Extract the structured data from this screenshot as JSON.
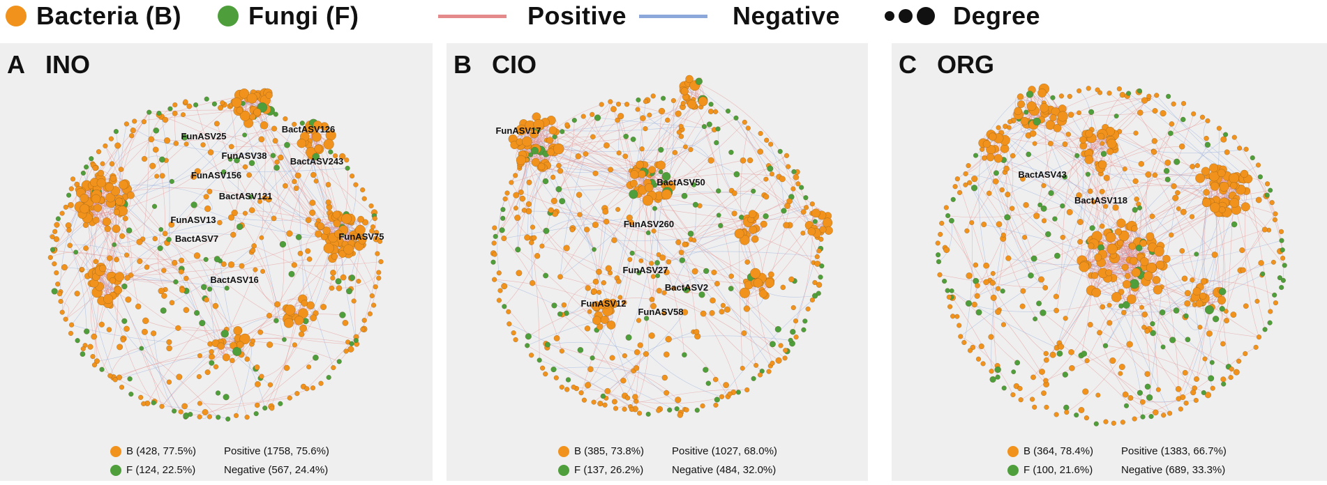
{
  "colors": {
    "bacteria": "#f0921c",
    "fungi": "#4f9e3c",
    "positive": "#e48a8a",
    "negative": "#8ca8da",
    "panel_bg": "#efefef"
  },
  "legend": {
    "bacteria": "Bacteria (B)",
    "fungi": "Fungi (F)",
    "positive": "Positive",
    "negative": "Negative",
    "degree": "Degree"
  },
  "panels": [
    {
      "letter": "A",
      "title": "INO",
      "labels": [
        "FunASV25",
        "BactASV126",
        "FunASV38",
        "BactASV243",
        "FunASV156",
        "BactASV121",
        "FunASV13",
        "FunASV75",
        "BactASV7",
        "BactASV16"
      ],
      "stats": {
        "b": "B (428, 77.5%)",
        "f": "F (124, 22.5%)",
        "positive": "Positive (1758, 75.6%)",
        "negative": "Negative (567, 24.4%)"
      }
    },
    {
      "letter": "B",
      "title": "CIO",
      "labels": [
        "FunASV17",
        "BactASV50",
        "FunASV260",
        "FunASV27",
        "BactASV2",
        "FunASV12",
        "FunASV58"
      ],
      "stats": {
        "b": "B (385, 73.8%)",
        "f": "F (137, 26.2%)",
        "positive": "Positive (1027, 68.0%)",
        "negative": "Negative (484, 32.0%)"
      }
    },
    {
      "letter": "C",
      "title": "ORG",
      "labels": [
        "BactASV43",
        "BactASV118"
      ],
      "stats": {
        "b": "B (364, 78.4%)",
        "f": "F (100, 21.6%)",
        "positive": "Positive (1383, 66.7%)",
        "negative": "Negative (689, 33.3%)"
      }
    }
  ]
}
